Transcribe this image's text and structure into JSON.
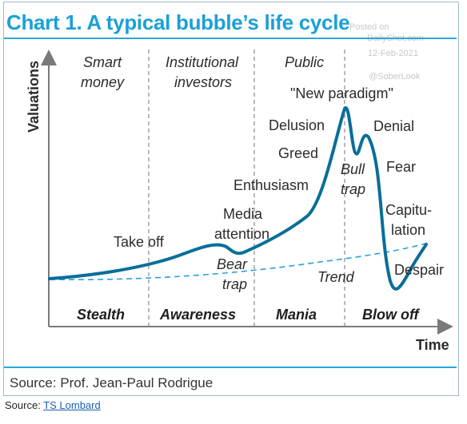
{
  "title": "Chart 1. A typical bubble’s life cycle",
  "watermark": {
    "posted_on": "Posted on",
    "site": "DailyShot.com",
    "date": "12-Feb-2021",
    "handle": "@SoberLook"
  },
  "axes": {
    "y_label": "Valuations",
    "x_label": "Time"
  },
  "investor_groups": {
    "smart_1": "Smart",
    "smart_2": "money",
    "inst_1": "Institutional",
    "inst_2": "investors",
    "public": "Public"
  },
  "phases": {
    "stealth": "Stealth",
    "awareness": "Awareness",
    "mania": "Mania",
    "blowoff": "Blow off"
  },
  "stages": {
    "take_off": "Take off",
    "media_1": "Media",
    "media_2": "attention",
    "bear_1": "Bear",
    "bear_2": "trap",
    "enthusiasm": "Enthusiasm",
    "greed": "Greed",
    "delusion": "Delusion",
    "new_paradigm": "\"New paradigm\"",
    "bull_1": "Bull",
    "bull_2": "trap",
    "denial": "Denial",
    "fear": "Fear",
    "capit_1": "Capitu-",
    "capit_2": "lation",
    "despair": "Despair",
    "trend": "Trend"
  },
  "colors": {
    "curve": "#0a6e99",
    "trend": "#29a3da",
    "title": "#1aa0d8",
    "rule": "#2aa7dc"
  },
  "source_inner": "Source: Prof. Jean-Paul Rodrigue",
  "source_outer": {
    "prefix": "Source: ",
    "link": "TS Lombard"
  }
}
